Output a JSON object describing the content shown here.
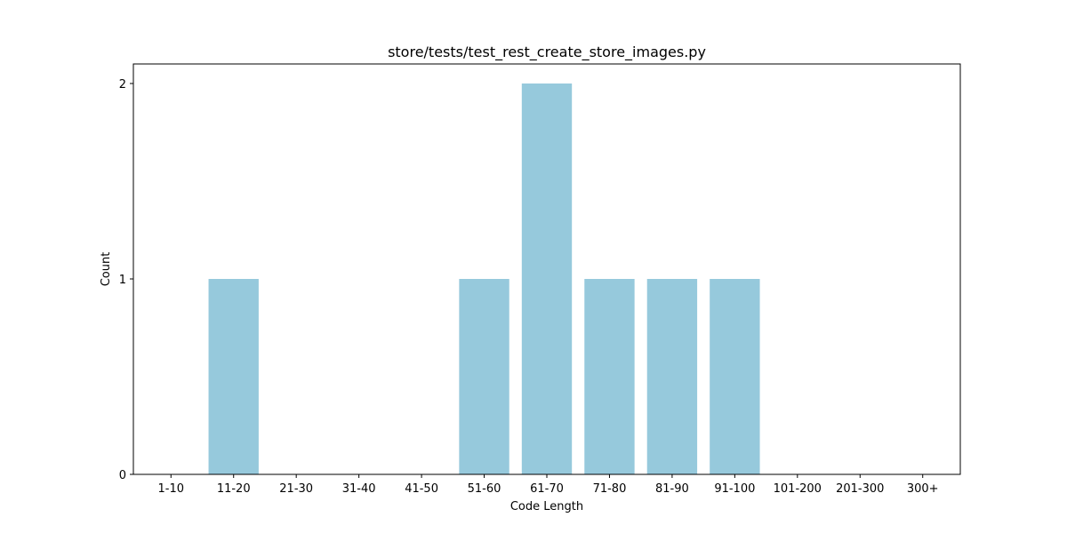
{
  "chart_data": {
    "type": "bar",
    "title": "store/tests/test_rest_create_store_images.py",
    "xlabel": "Code Length",
    "ylabel": "Count",
    "categories": [
      "1-10",
      "11-20",
      "21-30",
      "31-40",
      "41-50",
      "51-60",
      "61-70",
      "71-80",
      "81-90",
      "91-100",
      "101-200",
      "201-300",
      "300+"
    ],
    "values": [
      0,
      1,
      0,
      0,
      0,
      1,
      2,
      1,
      1,
      1,
      0,
      0,
      0
    ],
    "ylim": [
      0,
      2.1
    ],
    "yticks": [
      0,
      1,
      2
    ],
    "bar_color": "#96c9dc",
    "grid": false,
    "legend": "none"
  }
}
